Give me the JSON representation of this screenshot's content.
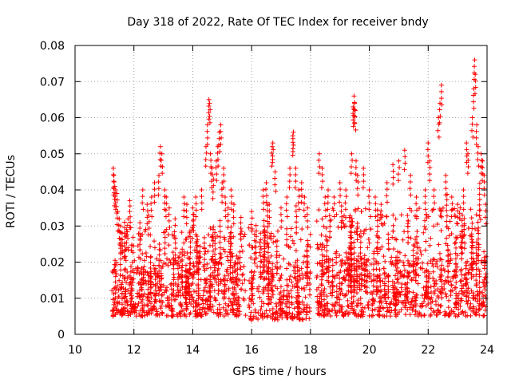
{
  "chart_data": {
    "type": "scatter",
    "title": "Day 318 of 2022, Rate Of TEC Index for receiver bndy",
    "xlabel": "GPS time / hours",
    "ylabel": "ROTI / TECUs",
    "xlim": [
      10,
      24
    ],
    "ylim": [
      0,
      0.08
    ],
    "xticks": [
      10,
      12,
      14,
      16,
      18,
      20,
      22,
      24
    ],
    "xtick_labels": [
      "10",
      "12",
      "14",
      "16",
      "18",
      "20",
      "22",
      "24"
    ],
    "yticks": [
      0,
      0.01,
      0.02,
      0.03,
      0.04,
      0.05,
      0.06,
      0.07,
      0.08
    ],
    "ytick_labels": [
      "0",
      "0.01",
      "0.02",
      "0.03",
      "0.04",
      "0.05",
      "0.06",
      "0.07",
      "0.08"
    ],
    "grid": true,
    "marker": "+",
    "marker_color": "#ff0000",
    "series": [
      {
        "name": "ROTI",
        "points": [
          [
            11.3,
            0.046
          ],
          [
            11.32,
            0.044
          ],
          [
            11.35,
            0.041
          ],
          [
            11.38,
            0.04
          ],
          [
            11.42,
            0.039
          ],
          [
            11.45,
            0.034
          ],
          [
            11.5,
            0.032
          ],
          [
            11.55,
            0.03
          ],
          [
            11.6,
            0.028
          ],
          [
            11.7,
            0.027
          ],
          [
            11.75,
            0.029
          ],
          [
            11.8,
            0.032
          ],
          [
            12.3,
            0.04
          ],
          [
            12.45,
            0.036
          ],
          [
            12.5,
            0.033
          ],
          [
            12.6,
            0.038
          ],
          [
            12.7,
            0.042
          ],
          [
            12.85,
            0.044
          ],
          [
            12.9,
            0.052
          ],
          [
            12.95,
            0.05
          ],
          [
            13.05,
            0.04
          ],
          [
            13.1,
            0.038
          ],
          [
            13.2,
            0.035
          ],
          [
            13.4,
            0.032
          ],
          [
            13.7,
            0.038
          ],
          [
            13.8,
            0.036
          ],
          [
            14.0,
            0.035
          ],
          [
            14.1,
            0.038
          ],
          [
            14.3,
            0.04
          ],
          [
            14.45,
            0.052
          ],
          [
            14.5,
            0.058
          ],
          [
            14.55,
            0.065
          ],
          [
            14.57,
            0.064
          ],
          [
            14.6,
            0.05
          ],
          [
            14.65,
            0.046
          ],
          [
            14.7,
            0.043
          ],
          [
            14.8,
            0.048
          ],
          [
            14.85,
            0.052
          ],
          [
            14.9,
            0.056
          ],
          [
            14.95,
            0.058
          ],
          [
            15.0,
            0.042
          ],
          [
            15.05,
            0.046
          ],
          [
            15.1,
            0.038
          ],
          [
            15.2,
            0.035
          ],
          [
            15.3,
            0.04
          ],
          [
            15.4,
            0.036
          ],
          [
            16.0,
            0.034
          ],
          [
            16.1,
            0.026
          ],
          [
            16.3,
            0.028
          ],
          [
            16.4,
            0.04
          ],
          [
            16.5,
            0.042
          ],
          [
            16.6,
            0.036
          ],
          [
            16.7,
            0.052
          ],
          [
            16.72,
            0.053
          ],
          [
            16.8,
            0.045
          ],
          [
            17.0,
            0.035
          ],
          [
            17.2,
            0.038
          ],
          [
            17.3,
            0.046
          ],
          [
            17.4,
            0.055
          ],
          [
            17.42,
            0.056
          ],
          [
            17.5,
            0.046
          ],
          [
            17.6,
            0.04
          ],
          [
            17.7,
            0.042
          ],
          [
            17.8,
            0.038
          ],
          [
            17.9,
            0.035
          ],
          [
            18.3,
            0.05
          ],
          [
            18.4,
            0.046
          ],
          [
            18.5,
            0.038
          ],
          [
            18.6,
            0.04
          ],
          [
            18.8,
            0.038
          ],
          [
            19.0,
            0.042
          ],
          [
            19.2,
            0.04
          ],
          [
            19.4,
            0.05
          ],
          [
            19.45,
            0.063
          ],
          [
            19.48,
            0.066
          ],
          [
            19.5,
            0.064
          ],
          [
            19.52,
            0.062
          ],
          [
            19.55,
            0.048
          ],
          [
            19.6,
            0.044
          ],
          [
            19.8,
            0.046
          ],
          [
            20.0,
            0.04
          ],
          [
            20.2,
            0.038
          ],
          [
            20.4,
            0.036
          ],
          [
            20.6,
            0.042
          ],
          [
            20.8,
            0.047
          ],
          [
            21.0,
            0.048
          ],
          [
            21.2,
            0.051
          ],
          [
            21.4,
            0.044
          ],
          [
            21.6,
            0.038
          ],
          [
            21.9,
            0.04
          ],
          [
            22.0,
            0.053
          ],
          [
            22.05,
            0.048
          ],
          [
            22.2,
            0.04
          ],
          [
            22.35,
            0.06
          ],
          [
            22.4,
            0.064
          ],
          [
            22.45,
            0.069
          ],
          [
            22.6,
            0.044
          ],
          [
            22.8,
            0.038
          ],
          [
            23.0,
            0.036
          ],
          [
            23.2,
            0.04
          ],
          [
            23.3,
            0.053
          ],
          [
            23.35,
            0.05
          ],
          [
            23.5,
            0.06
          ],
          [
            23.55,
            0.068
          ],
          [
            23.58,
            0.076
          ],
          [
            23.6,
            0.072
          ],
          [
            23.65,
            0.058
          ],
          [
            23.7,
            0.052
          ],
          [
            23.8,
            0.05
          ],
          [
            23.85,
            0.048
          ],
          [
            23.9,
            0.044
          ],
          [
            23.95,
            0.036
          ]
        ],
        "bands": [
          {
            "x_start": 11.25,
            "x_end": 15.8,
            "y_base_min": 0.005,
            "y_base_max": 0.02,
            "spike_max": 0.03,
            "density": 150
          },
          {
            "x_start": 15.9,
            "x_end": 18.0,
            "y_base_min": 0.004,
            "y_base_max": 0.018,
            "spike_max": 0.03,
            "density": 130
          },
          {
            "x_start": 18.2,
            "x_end": 24.0,
            "y_base_min": 0.005,
            "y_base_max": 0.021,
            "spike_max": 0.035,
            "density": 150
          }
        ]
      }
    ]
  }
}
